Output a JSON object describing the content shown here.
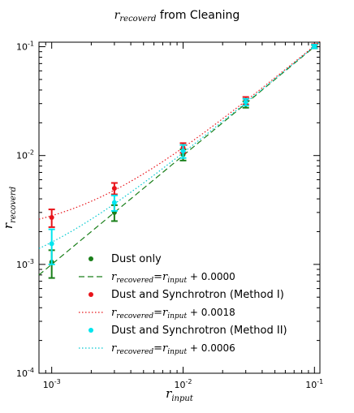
{
  "chart_data": {
    "type": "scatter",
    "title": {
      "main": "r",
      "sub": "recoverd",
      "rest": " from Cleaning"
    },
    "xlabel": {
      "main": "r",
      "sub": "input"
    },
    "ylabel": {
      "main": "r",
      "sub": "recoverd"
    },
    "xscale": "log",
    "yscale": "log",
    "xlim": [
      0.0008,
      0.11
    ],
    "ylim": [
      0.0001,
      0.11
    ],
    "x_ticks": [
      {
        "value": 0.001,
        "base": "10",
        "exp": "-3"
      },
      {
        "value": 0.01,
        "base": "10",
        "exp": "-2"
      },
      {
        "value": 0.1,
        "base": "10",
        "exp": "-1"
      }
    ],
    "y_ticks": [
      {
        "value": 0.0001,
        "base": "10",
        "exp": "-4"
      },
      {
        "value": 0.001,
        "base": "10",
        "exp": "-3"
      },
      {
        "value": 0.01,
        "base": "10",
        "exp": "-2"
      },
      {
        "value": 0.1,
        "base": "10",
        "exp": "-1"
      }
    ],
    "legend_position": "lower-right",
    "series": [
      {
        "name": "Dust only",
        "color": "#1a7f1a",
        "x_offset": 0,
        "points": [
          {
            "x": 0.001,
            "y": 0.00105,
            "err": 0.0003
          },
          {
            "x": 0.003,
            "y": 0.003,
            "err": 0.0005
          },
          {
            "x": 0.01,
            "y": 0.0102,
            "err": 0.0012
          },
          {
            "x": 0.03,
            "y": 0.0295,
            "err": 0.002
          },
          {
            "x": 0.1,
            "y": 0.1,
            "err": 0.0035
          }
        ],
        "fit": {
          "label_main": "r",
          "label_sub1": "recovered",
          "label_mid": "=r",
          "label_sub2": "input",
          "label_rest": " + 0.0000",
          "offset": 0.0,
          "style": "dashed",
          "color": "#1a7f1a"
        }
      },
      {
        "name": "Dust and Synchrotron (Method I)",
        "color": "#e8141a",
        "x_offset": 0,
        "points": [
          {
            "x": 0.001,
            "y": 0.0027,
            "err": 0.0005
          },
          {
            "x": 0.003,
            "y": 0.005,
            "err": 0.0006
          },
          {
            "x": 0.01,
            "y": 0.0118,
            "err": 0.0012
          },
          {
            "x": 0.03,
            "y": 0.032,
            "err": 0.0025
          },
          {
            "x": 0.1,
            "y": 0.1015,
            "err": 0.004
          }
        ],
        "fit": {
          "label_main": "r",
          "label_sub1": "recovered",
          "label_mid": "=r",
          "label_sub2": "input",
          "label_rest": " + 0.0018",
          "offset": 0.0018,
          "style": "dotted",
          "color": "#e8141a"
        }
      },
      {
        "name": "Dust and Synchrotron (Method II)",
        "color": "#00e5ee",
        "x_offset": 0,
        "points": [
          {
            "x": 0.001,
            "y": 0.00155,
            "err": 0.00055
          },
          {
            "x": 0.003,
            "y": 0.0037,
            "err": 0.0006
          },
          {
            "x": 0.01,
            "y": 0.011,
            "err": 0.0015
          },
          {
            "x": 0.03,
            "y": 0.031,
            "err": 0.0022
          },
          {
            "x": 0.1,
            "y": 0.1005,
            "err": 0.0038
          }
        ],
        "fit": {
          "label_main": "r",
          "label_sub1": "recovered",
          "label_mid": "=r",
          "label_sub2": "input",
          "label_rest": " + 0.0006",
          "offset": 0.0006,
          "style": "dotted",
          "color": "#00c8d0"
        }
      }
    ]
  }
}
